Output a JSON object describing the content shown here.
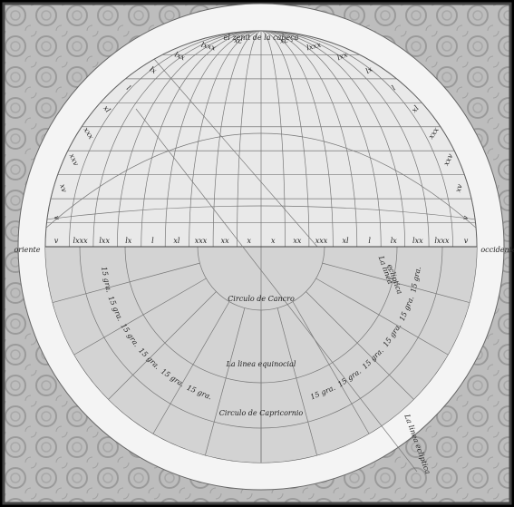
{
  "diagram": {
    "top_label": "el zenit de la cabeça",
    "left_label": "oriente",
    "right_label": "occidente",
    "horizon_labels": [
      "v",
      "lxxx",
      "lxx",
      "lx",
      "l",
      "xl",
      "xxx",
      "xx",
      "x",
      "x",
      "xx",
      "xxx",
      "xl",
      "l",
      "lx",
      "lxx",
      "lxxx",
      "v"
    ],
    "left_arc_labels": [
      "v",
      "xv",
      "xxv",
      "xxx",
      "xl",
      "l",
      "lx",
      "lxx",
      "lxxx",
      "xc"
    ],
    "right_arc_labels": [
      "xc",
      "lxxx",
      "lxx",
      "lx",
      "l",
      "xl",
      "xxx",
      "xxv",
      "xv",
      "v"
    ],
    "lower_left_labels": [
      "15 gra.",
      "15 gra.",
      "15 gra.",
      "15 gra.",
      "15 gra.",
      "15 gra."
    ],
    "lower_right_labels": [
      "15 gra.",
      "15 gra.",
      "15 gra.",
      "15 gra.",
      "15 gra.",
      "15 gra."
    ],
    "inner_label": "Circulo de Cancro",
    "middle_label": "La linea equinocial",
    "outer_label": "Circulo de Capricornio",
    "right_side_labels": [
      "La linea",
      "ecliptica"
    ],
    "ecliptic_label": "La linea ecliptica"
  }
}
